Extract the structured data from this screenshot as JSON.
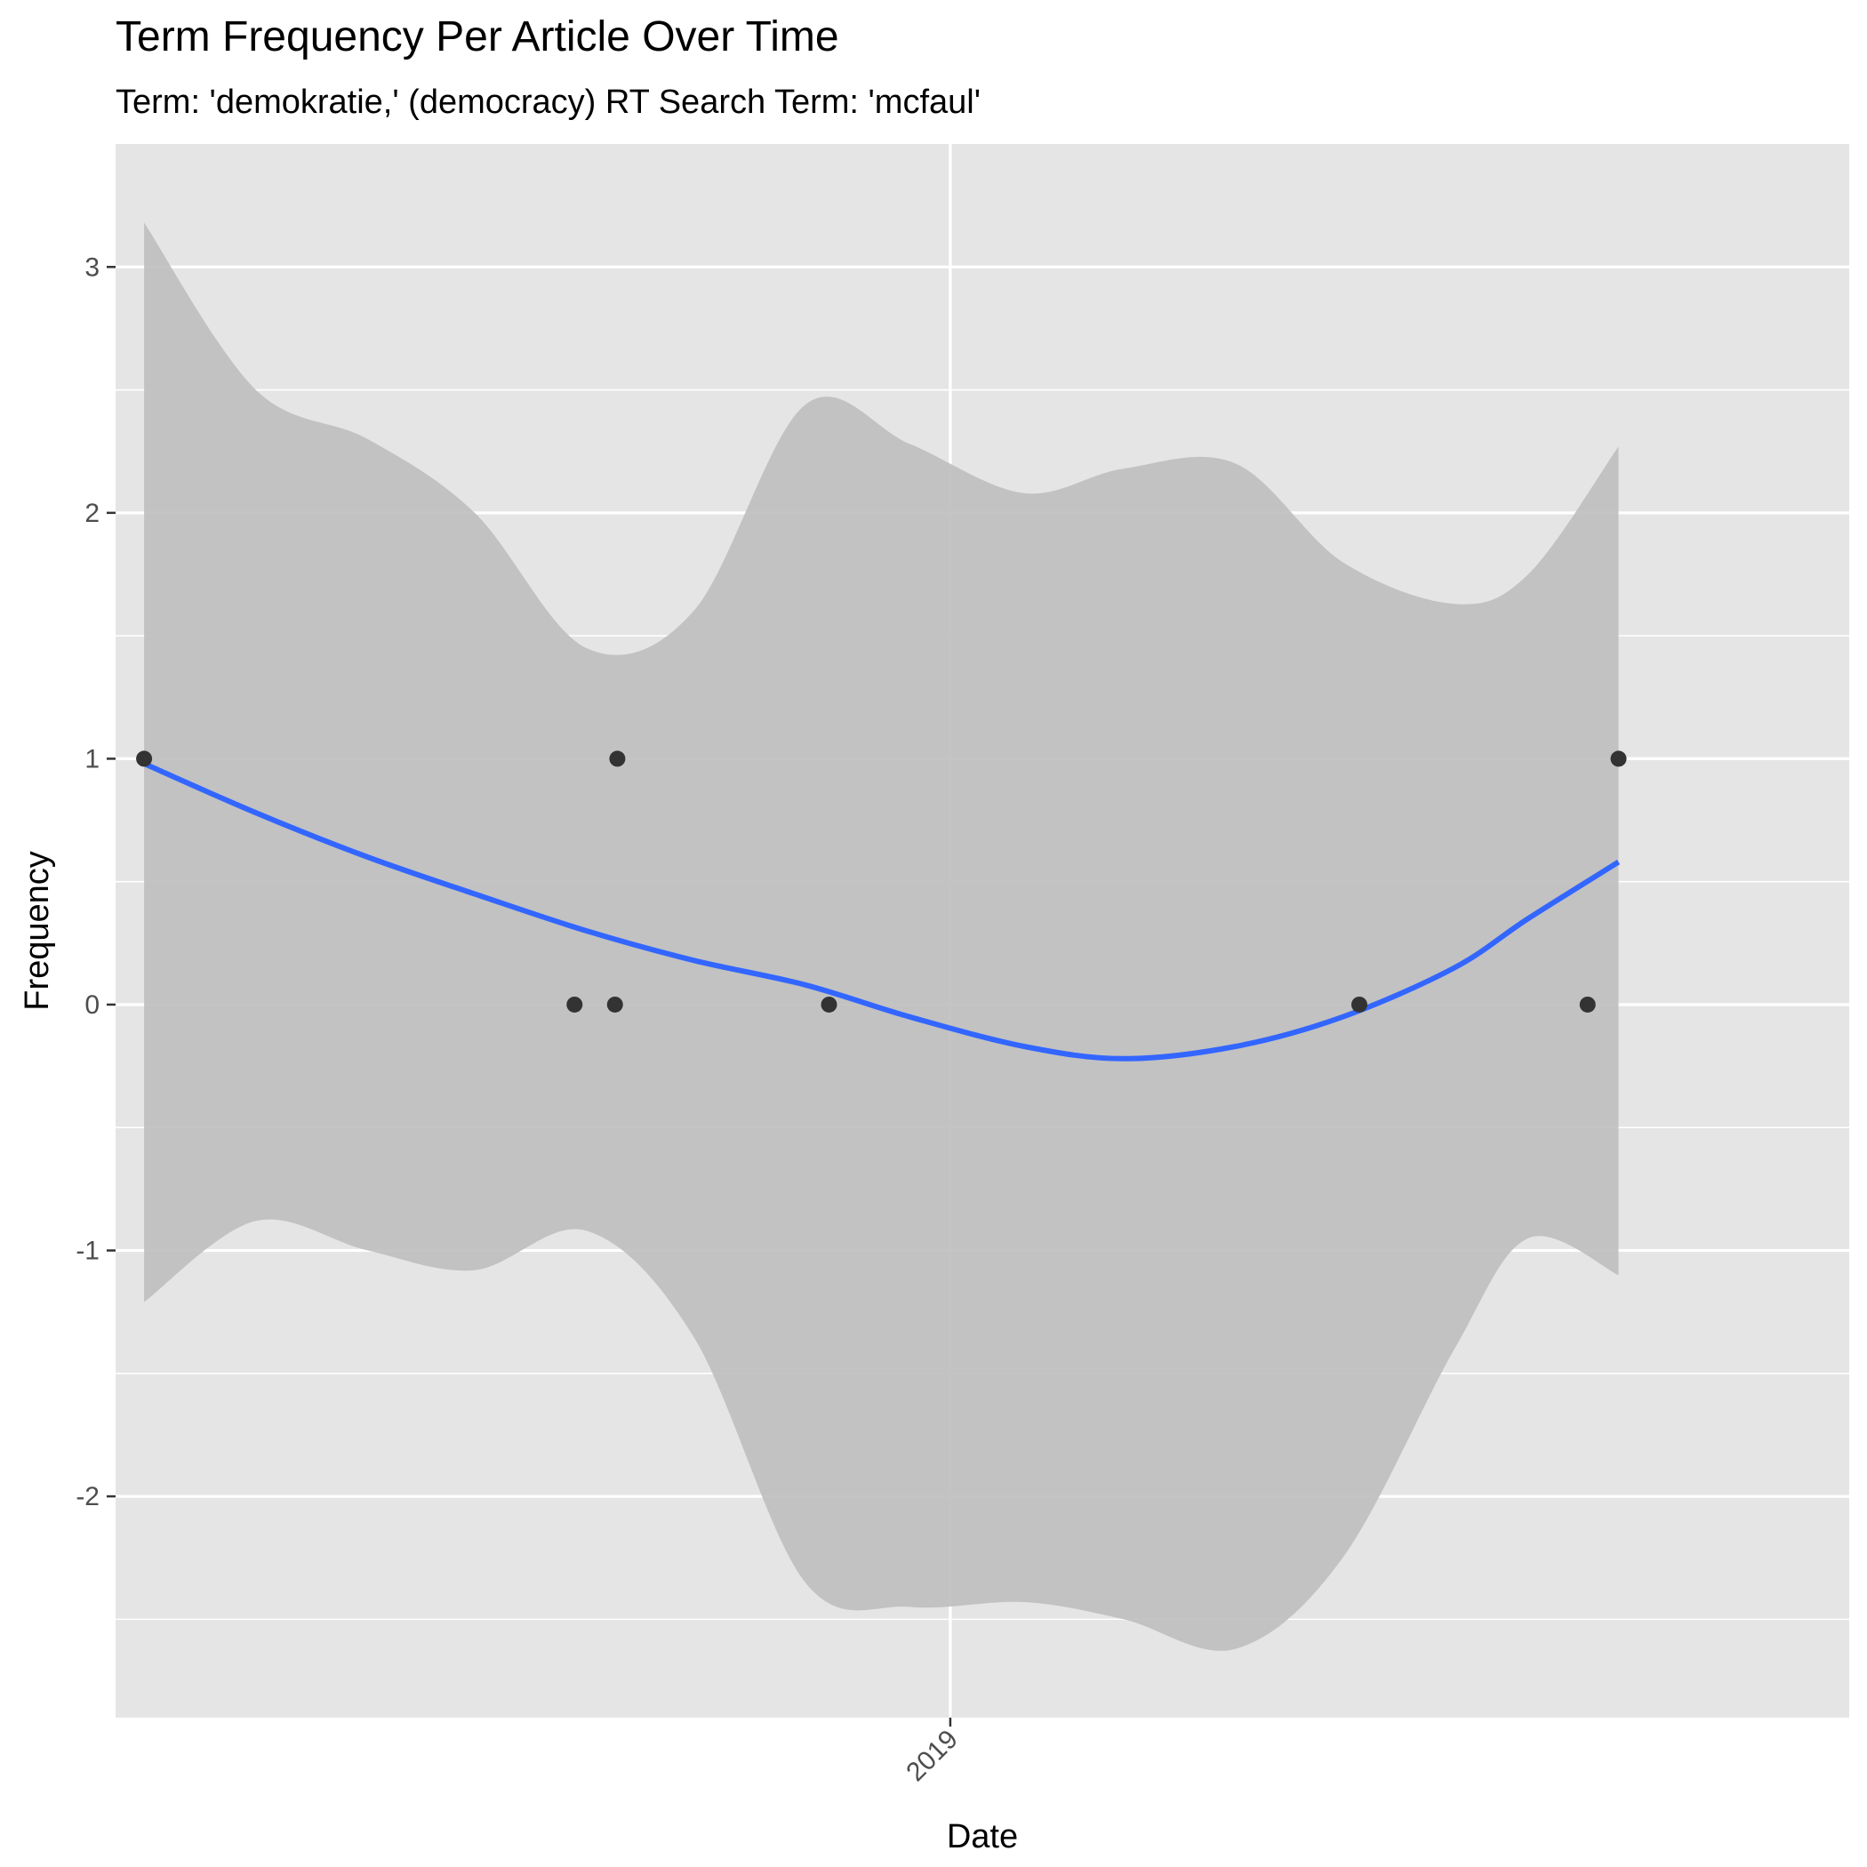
{
  "chart_data": {
    "type": "scatter",
    "title": "Term Frequency Per Article Over Time",
    "subtitle": "Term: 'demokratie,' (democracy) RT Search Term: 'mcfaul'",
    "xlabel": "Date",
    "ylabel": "Frequency",
    "x_is_date": true,
    "xlim": [
      "2018-01-15",
      "2020-01-14"
    ],
    "ylim": [
      -2.9,
      3.5
    ],
    "y_ticks": [
      -2,
      -1,
      0,
      1,
      2,
      3
    ],
    "y_tick_labels": [
      "-2",
      "-1",
      "0",
      "1",
      "2",
      "3"
    ],
    "x_ticks": [
      "2019-01-01"
    ],
    "x_tick_labels": [
      "2019"
    ],
    "x_tick_rotation_deg": -45,
    "grid": true,
    "panel_background": "#e5e5e5",
    "grid_color": "#ffffff",
    "points": {
      "color": "#333333",
      "x": [
        "2018-01-27",
        "2018-07-27",
        "2018-08-13",
        "2018-08-14",
        "2018-11-11",
        "2019-06-22",
        "2019-09-26",
        "2019-10-09"
      ],
      "y": [
        1,
        0,
        0,
        1,
        0,
        0,
        0,
        1
      ]
    },
    "smooth": {
      "color": "#3366ff",
      "band_color": "#bebebe",
      "x": [
        "2018-01-27",
        "2018-03-15",
        "2018-05-01",
        "2018-06-15",
        "2018-08-01",
        "2018-09-15",
        "2018-11-01",
        "2018-12-15",
        "2019-02-01",
        "2019-03-15",
        "2019-05-01",
        "2019-06-15",
        "2019-08-01",
        "2019-09-01",
        "2019-10-09"
      ],
      "y": [
        0.98,
        0.78,
        0.6,
        0.45,
        0.3,
        0.18,
        0.08,
        -0.05,
        -0.17,
        -0.22,
        -0.17,
        -0.05,
        0.15,
        0.35,
        0.58
      ],
      "upper": [
        3.18,
        2.5,
        2.3,
        2.0,
        1.45,
        1.6,
        2.44,
        2.28,
        2.08,
        2.18,
        2.2,
        1.8,
        1.63,
        1.75,
        2.27
      ],
      "lower": [
        -1.21,
        -0.88,
        -1.0,
        -1.08,
        -0.92,
        -1.35,
        -2.35,
        -2.45,
        -2.43,
        -2.5,
        -2.62,
        -2.25,
        -1.4,
        -0.95,
        -1.1
      ]
    }
  }
}
